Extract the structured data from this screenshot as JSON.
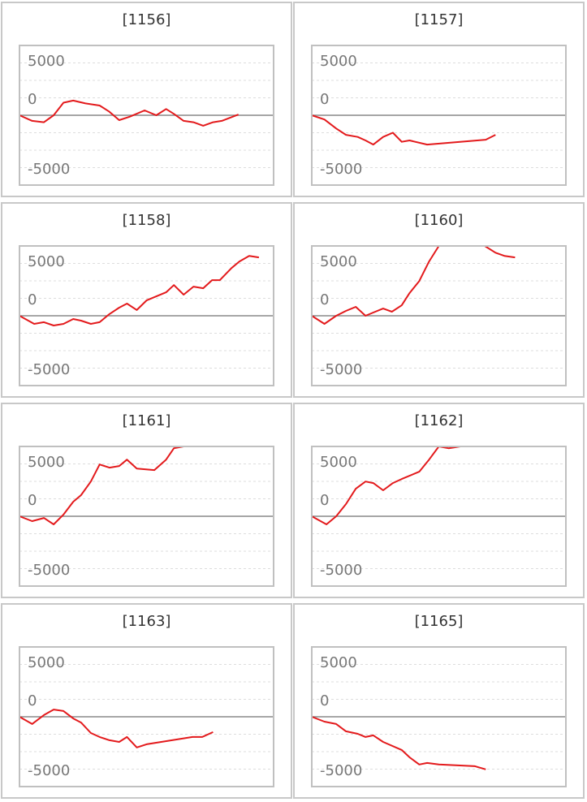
{
  "chart_data": [
    {
      "type": "line",
      "title": "[1156]",
      "color": "#e31a1c",
      "ylim": [
        -5000,
        5000
      ],
      "yticks": [
        -5000,
        0,
        5000
      ],
      "minor_yticks": [
        -3750,
        -2500,
        -1250,
        1250,
        2500,
        3750
      ],
      "xlim": [
        0,
        26
      ],
      "x": [
        0,
        1.3,
        2.5,
        3.5,
        4.5,
        5.5,
        6.75,
        8.2,
        9.2,
        10.2,
        11.3,
        12.8,
        14,
        15,
        15.8,
        16.8,
        17.8,
        18.8,
        19.8,
        20.7,
        22.4
      ],
      "values": [
        0,
        -400,
        -500,
        0,
        900,
        1050,
        850,
        700,
        250,
        -350,
        -100,
        350,
        0,
        450,
        100,
        -400,
        -500,
        -750,
        -500,
        -400,
        50
      ]
    },
    {
      "type": "line",
      "title": "[1157]",
      "color": "#e31a1c",
      "ylim": [
        -5000,
        5000
      ],
      "yticks": [
        -5000,
        0,
        5000
      ],
      "minor_yticks": [
        -3750,
        -2500,
        -1250,
        1250,
        2500,
        3750
      ],
      "xlim": [
        0,
        26
      ],
      "x": [
        0,
        1.3,
        2.5,
        3.5,
        4.7,
        5.5,
        6.3,
        7.3,
        8.3,
        9.2,
        10,
        11.8,
        17.8,
        18.8
      ],
      "values": [
        0,
        -300,
        -950,
        -1400,
        -1550,
        -1800,
        -2100,
        -1550,
        -1250,
        -1900,
        -1800,
        -2100,
        -1750,
        -1400
      ]
    },
    {
      "type": "line",
      "title": "[1158]",
      "color": "#e31a1c",
      "ylim": [
        -5000,
        5000
      ],
      "yticks": [
        -5000,
        0,
        5000
      ],
      "minor_yticks": [
        -3750,
        -2500,
        -1250,
        1250,
        2500,
        3750
      ],
      "xlim": [
        0,
        26
      ],
      "x": [
        0,
        1.5,
        2.5,
        3.5,
        4.5,
        5.5,
        6.3,
        7.3,
        8.2,
        9.2,
        10.2,
        11,
        12,
        13,
        14,
        15,
        15.8,
        16.8,
        17.8,
        18.8,
        19.7,
        20.5,
        21.7,
        22.5,
        23.5,
        24.5
      ],
      "values": [
        0,
        -580,
        -460,
        -700,
        -580,
        -230,
        -350,
        -580,
        -460,
        120,
        580,
        870,
        410,
        1100,
        1390,
        1680,
        2200,
        1510,
        2090,
        1970,
        2550,
        2550,
        3420,
        3890,
        4290,
        4180
      ]
    },
    {
      "type": "line",
      "title": "[1160]",
      "color": "#e31a1c",
      "ylim": [
        -5000,
        5000
      ],
      "yticks": [
        -5000,
        0,
        5000
      ],
      "minor_yticks": [
        -3750,
        -2500,
        -1250,
        1250,
        2500,
        3750
      ],
      "xlim": [
        0,
        26
      ],
      "x": [
        0,
        1.3,
        2.5,
        3.5,
        4.5,
        5.5,
        6.3,
        7.3,
        8.2,
        9.2,
        10,
        11,
        12,
        13,
        17.7,
        18.8,
        19.7,
        20.8
      ],
      "values": [
        0,
        -580,
        0,
        350,
        640,
        0,
        230,
        520,
        290,
        750,
        1620,
        2490,
        3890,
        5000,
        5000,
        4520,
        4290,
        4180
      ]
    },
    {
      "type": "line",
      "title": "[1161]",
      "color": "#e31a1c",
      "ylim": [
        -5000,
        5000
      ],
      "yticks": [
        -5000,
        0,
        5000
      ],
      "minor_yticks": [
        -3750,
        -2500,
        -1250,
        1250,
        2500,
        3750
      ],
      "xlim": [
        0,
        26
      ],
      "x": [
        0,
        1.3,
        2.5,
        3.5,
        4.5,
        5.5,
        6.3,
        7.3,
        8.2,
        9.2,
        10.2,
        11,
        12,
        13.8,
        15,
        15.8,
        16.8,
        22.4
      ],
      "values": [
        0,
        -350,
        -120,
        -580,
        120,
        1040,
        1510,
        2490,
        3710,
        3480,
        3600,
        4060,
        3420,
        3310,
        4060,
        4870,
        5000,
        5000
      ]
    },
    {
      "type": "line",
      "title": "[1162]",
      "color": "#e31a1c",
      "ylim": [
        -5000,
        5000
      ],
      "yticks": [
        -5000,
        0,
        5000
      ],
      "minor_yticks": [
        -3750,
        -2500,
        -1250,
        1250,
        2500,
        3750
      ],
      "xlim": [
        0,
        26
      ],
      "x": [
        0,
        1.5,
        2.5,
        3.5,
        4.5,
        5.5,
        6.3,
        7.3,
        8.3,
        9.2,
        11,
        12,
        13,
        14,
        15.2,
        25.5
      ],
      "values": [
        0,
        -580,
        0,
        870,
        1970,
        2490,
        2380,
        1860,
        2380,
        2670,
        3190,
        4060,
        5000,
        4870,
        5000,
        5000
      ]
    },
    {
      "type": "line",
      "title": "[1163]",
      "color": "#e31a1c",
      "ylim": [
        -5000,
        5000
      ],
      "yticks": [
        -5000,
        0,
        5000
      ],
      "minor_yticks": [
        -3750,
        -2500,
        -1250,
        1250,
        2500,
        3750
      ],
      "xlim": [
        0,
        26
      ],
      "x": [
        0,
        1.3,
        2.5,
        3.5,
        4.5,
        5.5,
        6.3,
        7.3,
        8.2,
        9.2,
        10.2,
        11,
        12,
        13,
        17.7,
        18.7,
        19.8
      ],
      "values": [
        0,
        -520,
        120,
        520,
        410,
        -120,
        -410,
        -1160,
        -1450,
        -1680,
        -1800,
        -1450,
        -2200,
        -1970,
        -1450,
        -1450,
        -1100
      ]
    },
    {
      "type": "line",
      "title": "[1165]",
      "color": "#e31a1c",
      "ylim": [
        -5000,
        5000
      ],
      "yticks": [
        -5000,
        0,
        5000
      ],
      "minor_yticks": [
        -3750,
        -2500,
        -1250,
        1250,
        2500,
        3750
      ],
      "xlim": [
        0,
        26
      ],
      "x": [
        0,
        1.3,
        2.5,
        3.5,
        4.7,
        5.5,
        6.3,
        7.3,
        9.2,
        10,
        11,
        11.8,
        13,
        16.7,
        17.8
      ],
      "values": [
        0,
        -350,
        -520,
        -1040,
        -1220,
        -1450,
        -1330,
        -1800,
        -2380,
        -2900,
        -3420,
        -3310,
        -3420,
        -3540,
        -3770
      ]
    }
  ]
}
